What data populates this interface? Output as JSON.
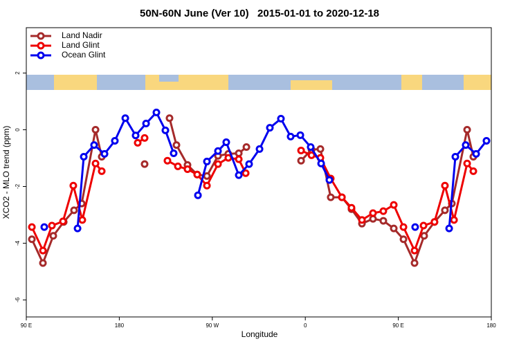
{
  "chart_data": {
    "type": "line",
    "title": "50N-60N June (Ver 10)   2015-01-01 to 2020-12-18",
    "x_label": "Longitude",
    "y_label": "XCO2 - MLO trend (ppm)",
    "xlim": [
      90,
      540
    ],
    "ylim": [
      -6.6,
      3.6
    ],
    "xticks": [
      {
        "value": 90,
        "label": "90 E"
      },
      {
        "value": 180,
        "label": "180"
      },
      {
        "value": 270,
        "label": "90 W"
      },
      {
        "value": 360,
        "label": "0"
      },
      {
        "value": 450,
        "label": "90 E"
      },
      {
        "value": 540,
        "label": "180"
      }
    ],
    "yticks": [
      -6,
      -4,
      -2,
      0,
      2
    ],
    "legend": "top-left",
    "series": [
      {
        "name": "Land Nadir",
        "color": "#a52a2a",
        "x": [
          95.4,
          106.1,
          116.1,
          126.2,
          136.2,
          143.6,
          157,
          163,
          184,
          204.5,
          215,
          228.6,
          235.3,
          246,
          255.4,
          264.8,
          275.5,
          285.5,
          295.6,
          303,
          330,
          355.9,
          366,
          374.6,
          384.6,
          395.4,
          404.7,
          414.8,
          425.5,
          435.5,
          445.6,
          455,
          465.7,
          475,
          485,
          495.1,
          501.8,
          516.6,
          522.6
        ],
        "values": [
          -3.86,
          -4.7,
          -3.74,
          -3.25,
          -2.84,
          -2.6,
          0,
          -0.95,
          null,
          -1.21,
          null,
          0.41,
          -0.54,
          -1.24,
          -1.58,
          -1.63,
          -0.92,
          -0.85,
          -0.83,
          -0.61,
          null,
          -1.09,
          -0.7,
          -0.68,
          -2.38,
          -2.38,
          -2.8,
          -3.31,
          -3.14,
          -3.21,
          -3.48,
          -3.86,
          -4.7,
          -3.74,
          -3.25,
          -2.84,
          -2.6,
          0,
          -0.95
        ]
      },
      {
        "name": "Land Glint",
        "color": "#ee0000",
        "x": [
          95.4,
          106.1,
          114.8,
          125.5,
          135.5,
          144.2,
          157,
          163,
          180,
          197.8,
          204.5,
          215,
          226.6,
          236.7,
          246,
          255.4,
          264.8,
          275.5,
          285.5,
          295.6,
          302.3,
          330,
          355.9,
          366,
          374.6,
          384.6,
          395.4,
          404.7,
          414.8,
          425.5,
          435.5,
          445.6,
          455,
          465.7,
          474.4,
          485,
          495.1,
          503.9,
          516.6,
          522.6
        ],
        "values": [
          -3.43,
          -4.26,
          -3.38,
          -3.23,
          -1.97,
          -3.18,
          -1.19,
          -1.46,
          null,
          -0.46,
          -0.29,
          null,
          -1.09,
          -1.29,
          -1.39,
          -1.58,
          -1.97,
          -1.21,
          -0.99,
          -1.04,
          -1.53,
          null,
          -0.73,
          -0.9,
          -0.99,
          -1.72,
          -2.38,
          -2.75,
          -3.18,
          -2.94,
          -2.87,
          -2.65,
          -3.43,
          -4.26,
          -3.38,
          -3.25,
          -1.97,
          -3.18,
          -1.19,
          -1.46
        ]
      },
      {
        "name": "Ocean Glint",
        "color": "#0000ee",
        "x": [
          107.4,
          120,
          139.6,
          145.6,
          155.6,
          165.7,
          175.7,
          185.8,
          195.8,
          205.9,
          215.9,
          224.6,
          232.6,
          245,
          256.1,
          264.8,
          275.5,
          283.5,
          295.6,
          305.6,
          315.7,
          325.7,
          336.4,
          345.8,
          355.2,
          365.2,
          375.3,
          383.3,
          420,
          466.3,
          480,
          499.2,
          505.2,
          515.2,
          525.3,
          535.3
        ],
        "values": [
          -3.43,
          null,
          -3.48,
          -0.95,
          -0.54,
          -0.85,
          -0.39,
          0.41,
          -0.2,
          0.22,
          0.61,
          -0.02,
          -0.83,
          null,
          -2.31,
          -1.12,
          -0.75,
          -0.44,
          -1.6,
          -1.21,
          -0.68,
          0.07,
          0.39,
          -0.24,
          -0.19,
          -0.61,
          -1.19,
          -1.77,
          null,
          -3.43,
          null,
          -3.48,
          -0.95,
          -0.54,
          -0.85,
          -0.39
        ]
      }
    ]
  }
}
